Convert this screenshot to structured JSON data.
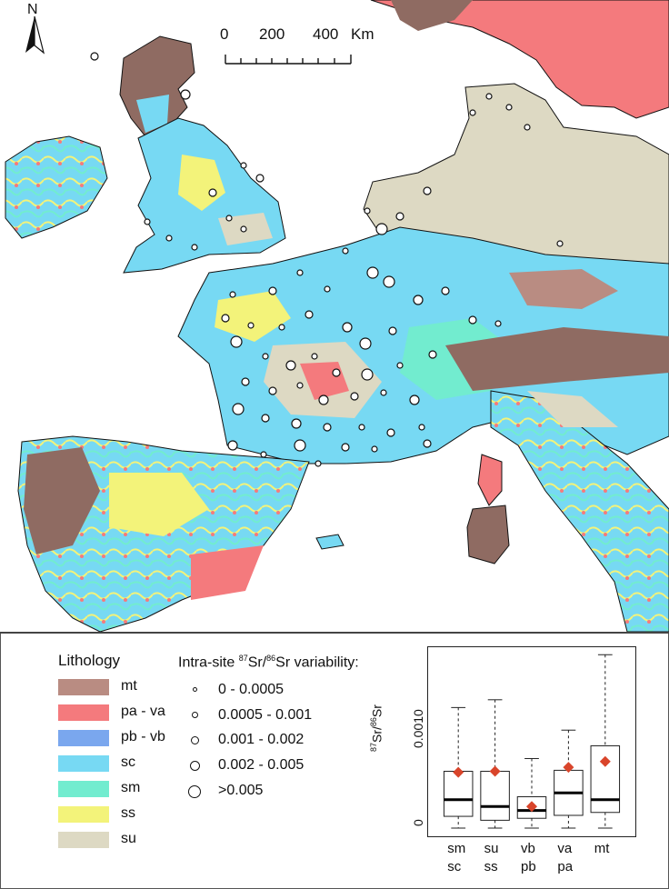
{
  "north_arrow": {
    "label": "N"
  },
  "scale_bar": {
    "ticks": [
      "0",
      "200",
      "400"
    ],
    "unit": "Km"
  },
  "lithology": {
    "title": "Lithology",
    "items": [
      {
        "code": "mt",
        "color": "#b98c82"
      },
      {
        "code": "pa - va",
        "color": "#f47a7d"
      },
      {
        "code": "pb - vb",
        "color": "#7aa7ee"
      },
      {
        "code": "sc",
        "color": "#77d9f3"
      },
      {
        "code": "sm",
        "color": "#72eccf"
      },
      {
        "code": "ss",
        "color": "#f3f37a"
      },
      {
        "code": "su",
        "color": "#ddd9c3"
      }
    ]
  },
  "variability": {
    "title_prefix": "Intra-site ",
    "sup1": "87",
    "mid": "Sr/",
    "sup2": "86",
    "title_suffix": "Sr variability:",
    "classes": [
      "0  -  0.0005",
      "0.0005  -  0.001",
      "0.001  -  0.002",
      "0.002  -  0.005",
      ">0.005"
    ]
  },
  "boxplot": {
    "ylabel_sup1": "87",
    "ylabel_mid": "Sr/",
    "ylabel_sup2": "86",
    "ylabel_suffix": "Sr",
    "yticks": [
      "0",
      "0.0010"
    ],
    "categories": [
      {
        "top": "sm",
        "bottom": "sc"
      },
      {
        "top": "su",
        "bottom": "ss"
      },
      {
        "top": "vb",
        "bottom": "pb"
      },
      {
        "top": "va",
        "bottom": "pa"
      },
      {
        "top": "mt",
        "bottom": ""
      }
    ]
  },
  "chart_data": {
    "type": "box",
    "ylim": [
      0,
      0.0018
    ],
    "categories": [
      "sm/sc",
      "su/ss",
      "vb/pb",
      "va/pa",
      "mt"
    ],
    "series": [
      {
        "min": 0.0,
        "q1": 0.00012,
        "median": 0.00029,
        "q3": 0.00058,
        "max": 0.00123,
        "mean": 0.00057
      },
      {
        "min": 0.0,
        "q1": 8e-05,
        "median": 0.00022,
        "q3": 0.00058,
        "max": 0.00131,
        "mean": 0.00058
      },
      {
        "min": 0.0,
        "q1": 0.0001,
        "median": 0.00018,
        "q3": 0.00032,
        "max": 0.00071,
        "mean": 0.00022
      },
      {
        "min": 0.0,
        "q1": 0.00013,
        "median": 0.00036,
        "q3": 0.00059,
        "max": 0.001,
        "mean": 0.00062
      },
      {
        "min": 0.0,
        "q1": 0.00016,
        "median": 0.00029,
        "q3": 0.00084,
        "max": 0.00177,
        "mean": 0.00068
      }
    ],
    "mean_color": "#d9452b"
  }
}
